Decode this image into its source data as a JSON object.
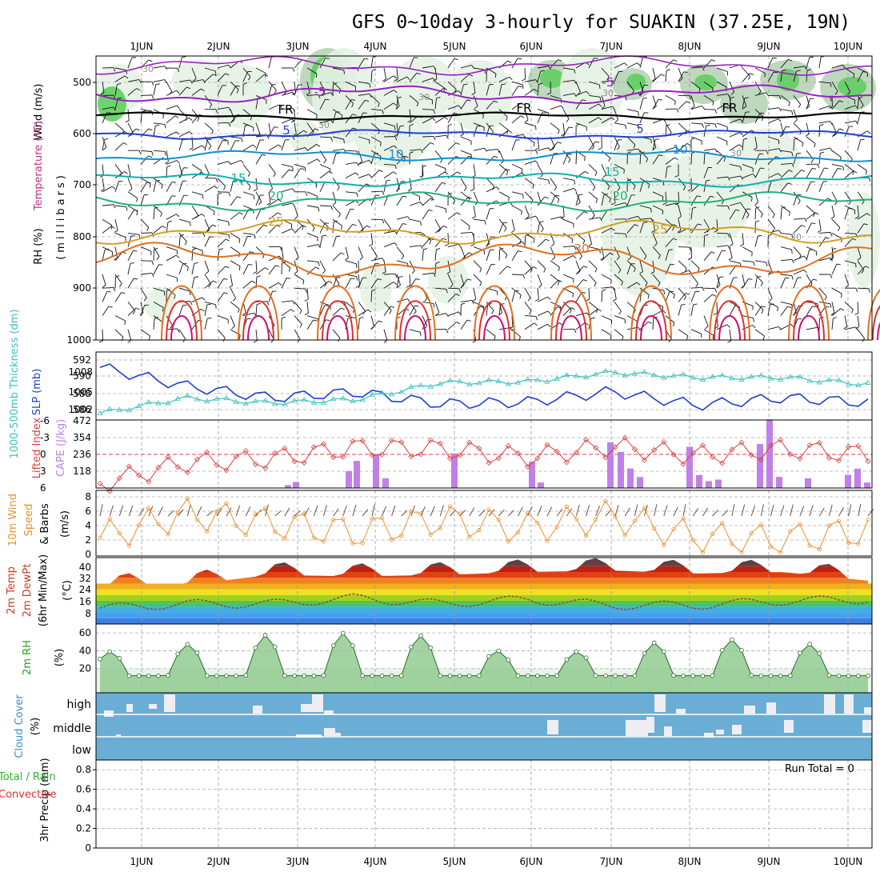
{
  "title": "GFS 0~10day 3-hourly for SUAKIN (37.25E, 19N)",
  "days": [
    "1JUN",
    "2JUN",
    "3JUN",
    "4JUN",
    "5JUN",
    "6JUN",
    "7JUN",
    "8JUN",
    "9JUN",
    "10JUN"
  ],
  "colors": {
    "rh_light": "#e6f2e6",
    "rh_mid": "#b6d4b6",
    "rh_dark": "#8fb08f",
    "rh_green": "#5fcf5f",
    "slp": "#1f3fcf",
    "thickness": "#3fbfbf",
    "lifted": "#d84040",
    "cape": "#c080e8",
    "wind10": "#e89030",
    "cloud": "#6aaed6",
    "rh2m": "#3a9a3a"
  },
  "panels": {
    "upper": {
      "label_wind": "Wind (m/s)",
      "label_temp": "Temperature (°C)",
      "label_rh": "RH (%)",
      "label_mb": "(millibars)",
      "ticks": [
        "500",
        "600",
        "700",
        "800",
        "900",
        "1000"
      ],
      "contour_labels": [
        {
          "text": "-5",
          "color": "#9a20c0"
        },
        {
          "text": "-5",
          "color": "#9a20c0"
        },
        {
          "text": "FR",
          "color": "#000"
        },
        {
          "text": "FR",
          "color": "#000"
        },
        {
          "text": "FR",
          "color": "#000"
        },
        {
          "text": "5",
          "color": "#2040d0"
        },
        {
          "text": "5",
          "color": "#2040d0"
        },
        {
          "text": "10",
          "color": "#1090d0"
        },
        {
          "text": "10",
          "color": "#1090d0"
        },
        {
          "text": "15",
          "color": "#10b0b0"
        },
        {
          "text": "15",
          "color": "#10b0b0"
        },
        {
          "text": "20",
          "color": "#20b080"
        },
        {
          "text": "20",
          "color": "#20b080"
        },
        {
          "text": "25",
          "color": "#d0a020"
        },
        {
          "text": "25",
          "color": "#d0a020"
        },
        {
          "text": "30",
          "color": "#e07020"
        },
        {
          "text": "30",
          "color": "#909090"
        },
        {
          "text": "30",
          "color": "#909090"
        },
        {
          "text": "30",
          "color": "#909090"
        },
        {
          "text": "30",
          "color": "#909090"
        },
        {
          "text": "30",
          "color": "#909090"
        },
        {
          "text": "30",
          "color": "#909090"
        }
      ]
    },
    "slp": {
      "label_thickness": "1000-500mb Thickness (dm)",
      "label_slp": "SLP (mb)",
      "ticks_left": [
        "592",
        "590",
        "588",
        "586"
      ],
      "ticks_right": [
        "1008",
        "1005",
        "1002"
      ]
    },
    "cape": {
      "label_li": "Lifted Index",
      "label_cape": "CAPE (J/kg)",
      "ticks_left": [
        "-6",
        "-3",
        "0",
        "3",
        "6"
      ],
      "ticks_right": [
        "472",
        "354",
        "236",
        "118"
      ]
    },
    "wind": {
      "label": "10m Wind Speed & Barbs (m/s)",
      "label_a": "10m Wind",
      "label_b": "Speed",
      "label_c": "& Barbs",
      "label_d": "(m/s)",
      "ticks": [
        "8",
        "6",
        "4",
        "2",
        "0"
      ]
    },
    "temp": {
      "label_a": "2m Temp",
      "label_b": "2m DewPt",
      "label_c": "(6hr Min/Max)",
      "label_d": "(°C)",
      "ticks": [
        "40",
        "32",
        "24",
        "16",
        "8"
      ]
    },
    "rh2m": {
      "label_a": "2m RH",
      "label_b": "(%)",
      "ticks": [
        "60",
        "40",
        "20"
      ]
    },
    "cloud": {
      "label_a": "Cloud Cover",
      "label_b": "(%)",
      "levels": [
        "high",
        "middle",
        "low"
      ]
    },
    "precip": {
      "label_a": "3hr Precip (mm)",
      "label_total": "Total / Rain",
      "label_conv": "Convective",
      "run_total": "Run Total = 0",
      "ticks": [
        "0.8",
        "0.6",
        "0.4",
        "0.2",
        "0"
      ]
    }
  },
  "chart_data": [
    {
      "type": "line",
      "title": "SLP (mb) / 1000-500mb Thickness (dm)",
      "x": [
        "1JUN",
        "2JUN",
        "3JUN",
        "4JUN",
        "5JUN",
        "6JUN",
        "7JUN",
        "8JUN",
        "9JUN",
        "10JUN"
      ],
      "series": [
        {
          "name": "SLP (mb)",
          "values": [
            1008.5,
            1005.5,
            1003.6,
            1004.5,
            1002.6,
            1002.9,
            1004.6,
            1002.4,
            1003.6,
            1002.8
          ]
        },
        {
          "name": "1000-500mb Thickness (dm)",
          "values": [
            585.8,
            587.6,
            587.0,
            587.4,
            589.4,
            589.5,
            590.6,
            590.0,
            590.0,
            589.2
          ]
        }
      ],
      "ylim_left": [
        585,
        593
      ],
      "ylim_right": [
        1000,
        1011
      ]
    },
    {
      "type": "bar",
      "title": "Lifted Index / CAPE (J/kg)",
      "x": [
        "1JUN",
        "2JUN",
        "3JUN",
        "4JUN",
        "5JUN",
        "6JUN",
        "7JUN",
        "8JUN",
        "9JUN",
        "10JUN"
      ],
      "series": [
        {
          "name": "Lifted Index",
          "values": [
            5.2,
            1.5,
            0.8,
            -1.2,
            -1.0,
            0.5,
            -1.4,
            0.2,
            -1.0,
            0.0
          ]
        },
        {
          "name": "CAPE (J/kg)",
          "values": [
            0,
            0,
            110,
            240,
            220,
            180,
            330,
            280,
            380,
            120
          ]
        }
      ],
      "ylim_left": [
        6,
        -6
      ],
      "ylim_right": [
        0,
        472
      ]
    },
    {
      "type": "line",
      "title": "10m Wind Speed (m/s)",
      "x": [
        "1JUN",
        "2JUN",
        "3JUN",
        "4JUN",
        "5JUN",
        "6JUN",
        "7JUN",
        "8JUN",
        "9JUN",
        "10JUN"
      ],
      "series": [
        {
          "name": "Speed",
          "values": [
            2.5,
            5.8,
            4.5,
            3.2,
            5.0,
            3.8,
            5.5,
            2.5,
            2.2,
            3.5
          ]
        }
      ],
      "ylim": [
        0,
        9
      ]
    },
    {
      "type": "area",
      "title": "2m Temp / 2m DewPt (°C)",
      "x": [
        "1JUN",
        "2JUN",
        "3JUN",
        "4JUN",
        "5JUN",
        "6JUN",
        "7JUN",
        "8JUN",
        "9JUN",
        "10JUN"
      ],
      "series": [
        {
          "name": "2m Temp",
          "values": [
            30,
            31,
            38,
            37,
            38,
            40,
            41,
            39,
            40,
            34
          ]
        },
        {
          "name": "2m DewPt",
          "values": [
            11,
            14,
            14,
            18,
            14,
            17,
            13,
            13,
            16,
            17
          ]
        }
      ],
      "ylim": [
        0,
        46
      ]
    },
    {
      "type": "area",
      "title": "2m RH (%)",
      "x": [
        "1JUN",
        "2JUN",
        "3JUN",
        "4JUN",
        "5JUN",
        "6JUN",
        "7JUN",
        "8JUN",
        "9JUN",
        "10JUN"
      ],
      "series": [
        {
          "name": "2m RH",
          "values": [
            36,
            45,
            56,
            58,
            54,
            30,
            42,
            52,
            48,
            40
          ]
        }
      ],
      "ylim": [
        0,
        70
      ]
    },
    {
      "type": "bar",
      "title": "3hr Precip (mm)",
      "x": [
        "1JUN",
        "2JUN",
        "3JUN",
        "4JUN",
        "5JUN",
        "6JUN",
        "7JUN",
        "8JUN",
        "9JUN",
        "10JUN"
      ],
      "series": [
        {
          "name": "Total / Rain",
          "values": [
            0,
            0,
            0,
            0,
            0,
            0,
            0,
            0,
            0,
            0
          ]
        }
      ],
      "ylim": [
        0,
        0.9
      ]
    }
  ]
}
